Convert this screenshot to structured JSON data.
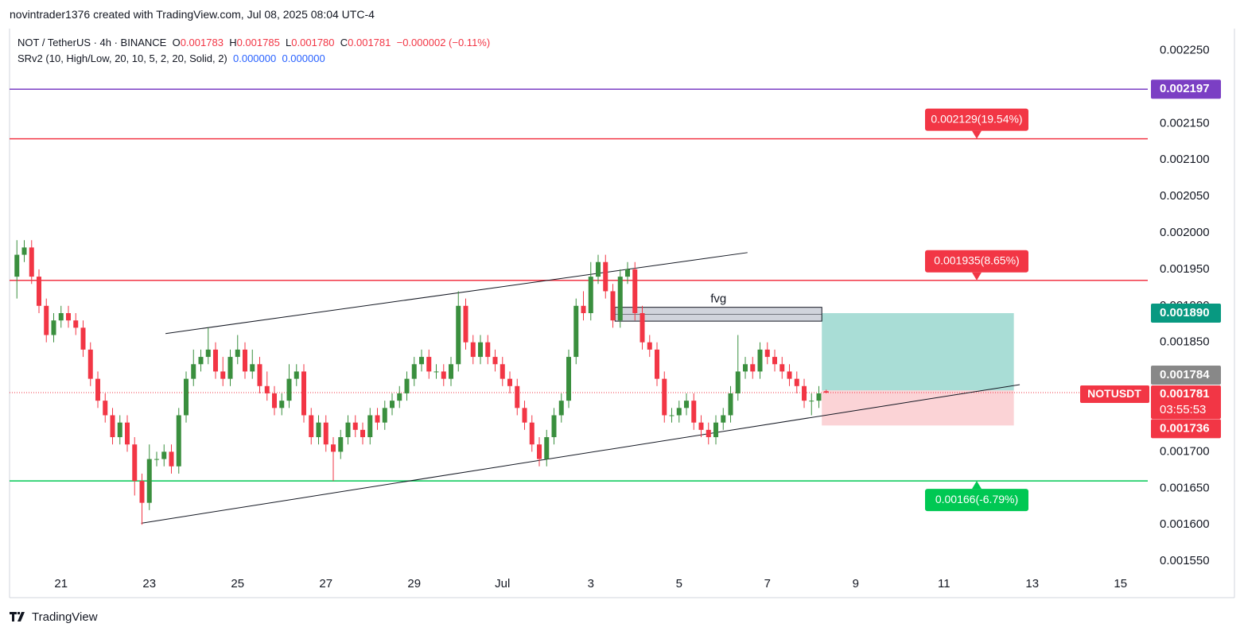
{
  "chart_data": {
    "type": "candlestick",
    "attribution": "novintrader1376 created with TradingView.com, Jul 08, 2025 08:04 UTC-4",
    "legend": {
      "symbol": "NOT / TetherUS · 4h · BINANCE",
      "ohlc": [
        {
          "key": "O",
          "value": "0.001783"
        },
        {
          "key": "H",
          "value": "0.001785"
        },
        {
          "key": "L",
          "value": "0.001780"
        },
        {
          "key": "C",
          "value": "0.001781"
        }
      ],
      "change": "−0.000002 (−0.11%)",
      "indicator": "SRv2 (10, High/Low, 20, 10, 5, 2, 20, Solid, 2)",
      "indicator_values": [
        "0.000000",
        "0.000000"
      ]
    },
    "footer": "TradingView",
    "up_color": "#3a8f3e",
    "down_color": "#f23645",
    "xlim": [
      -1,
      153.7
    ],
    "ylim": [
      0.0015,
      0.00228
    ],
    "xticks": [
      {
        "value": 6,
        "label": "21"
      },
      {
        "value": 18,
        "label": "23"
      },
      {
        "value": 30,
        "label": "25"
      },
      {
        "value": 42,
        "label": "27"
      },
      {
        "value": 54,
        "label": "29"
      },
      {
        "value": 66,
        "label": "Jul"
      },
      {
        "value": 78,
        "label": "3"
      },
      {
        "value": 90,
        "label": "5"
      },
      {
        "value": 102,
        "label": "7"
      },
      {
        "value": 114,
        "label": "9"
      },
      {
        "value": 126,
        "label": "11"
      },
      {
        "value": 138,
        "label": "13"
      },
      {
        "value": 150,
        "label": "15"
      }
    ],
    "yticks": [
      {
        "value": 0.00225,
        "label": "0.002250"
      },
      {
        "value": 0.00215,
        "label": "0.002150"
      },
      {
        "value": 0.0021,
        "label": "0.002100"
      },
      {
        "value": 0.00205,
        "label": "0.002050"
      },
      {
        "value": 0.002,
        "label": "0.002000"
      },
      {
        "value": 0.00195,
        "label": "0.001950"
      },
      {
        "value": 0.0019,
        "label": "0.001900"
      },
      {
        "value": 0.00185,
        "label": "0.001850"
      },
      {
        "value": 0.0017,
        "label": "0.001700"
      },
      {
        "value": 0.00165,
        "label": "0.001650"
      },
      {
        "value": 0.0016,
        "label": "0.001600"
      },
      {
        "value": 0.00155,
        "label": "0.001550"
      }
    ],
    "grid": false,
    "open": [
      0.00194,
      0.00197,
      0.00198,
      0.00194,
      0.0019,
      0.00186,
      0.00188,
      0.00189,
      0.00188,
      0.00187,
      0.00184,
      0.0018,
      0.00177,
      0.00175,
      0.00172,
      0.00174,
      0.00171,
      0.00166,
      0.00163,
      0.00169,
      0.00169,
      0.0017,
      0.00168,
      0.00175,
      0.0018,
      0.00182,
      0.00183,
      0.00184,
      0.00181,
      0.0018,
      0.00183,
      0.00184,
      0.00181,
      0.00182,
      0.00179,
      0.00178,
      0.00176,
      0.00177,
      0.0018,
      0.00181,
      0.00175,
      0.00172,
      0.00174,
      0.00171,
      0.0017,
      0.00172,
      0.00174,
      0.00173,
      0.00172,
      0.00175,
      0.00174,
      0.00176,
      0.00177,
      0.00178,
      0.0018,
      0.00182,
      0.00183,
      0.00181,
      0.00181,
      0.0018,
      0.00182,
      0.0019,
      0.00185,
      0.00183,
      0.00185,
      0.00183,
      0.00182,
      0.0018,
      0.00179,
      0.00176,
      0.00174,
      0.00171,
      0.00169,
      0.00172,
      0.00175,
      0.00177,
      0.00183,
      0.0019,
      0.00189,
      0.00194,
      0.00196,
      0.00192,
      0.00188,
      0.00194,
      0.00195,
      0.00189,
      0.00185,
      0.00184,
      0.0018,
      0.00175,
      0.00175,
      0.00176,
      0.00177,
      0.00174,
      0.00173,
      0.00172,
      0.00174,
      0.00175,
      0.00178,
      0.00181,
      0.00182,
      0.00181,
      0.00184,
      0.00183,
      0.00182,
      0.00181,
      0.0018,
      0.00179,
      0.00177,
      0.00177,
      0.001783
    ],
    "high": [
      0.00199,
      0.00199,
      0.00199,
      0.00195,
      0.00191,
      0.00189,
      0.0019,
      0.0019,
      0.00189,
      0.00188,
      0.00185,
      0.00181,
      0.00178,
      0.00176,
      0.00175,
      0.00175,
      0.00172,
      0.00167,
      0.00171,
      0.0017,
      0.00171,
      0.00171,
      0.00176,
      0.00181,
      0.00184,
      0.00184,
      0.00187,
      0.00185,
      0.00183,
      0.00184,
      0.00186,
      0.00185,
      0.00184,
      0.00183,
      0.00181,
      0.00179,
      0.00178,
      0.00182,
      0.00182,
      0.00182,
      0.00176,
      0.00175,
      0.00175,
      0.00172,
      0.00173,
      0.00175,
      0.00175,
      0.00174,
      0.00176,
      0.00176,
      0.00177,
      0.00178,
      0.00179,
      0.00181,
      0.00183,
      0.00184,
      0.00184,
      0.00182,
      0.00182,
      0.00183,
      0.00192,
      0.00191,
      0.00186,
      0.00186,
      0.00186,
      0.00184,
      0.00183,
      0.00181,
      0.0018,
      0.00177,
      0.00175,
      0.00172,
      0.00173,
      0.00176,
      0.00178,
      0.00184,
      0.00191,
      0.00192,
      0.00196,
      0.00197,
      0.00197,
      0.00193,
      0.00195,
      0.00196,
      0.00196,
      0.0019,
      0.00186,
      0.00185,
      0.00181,
      0.00176,
      0.00177,
      0.00178,
      0.00178,
      0.00175,
      0.00174,
      0.00175,
      0.00176,
      0.00179,
      0.00186,
      0.00183,
      0.00183,
      0.00185,
      0.00185,
      0.00184,
      0.00183,
      0.00182,
      0.00181,
      0.0018,
      0.00178,
      0.00179,
      0.001785
    ],
    "low": [
      0.00191,
      0.00196,
      0.00193,
      0.00189,
      0.00185,
      0.00185,
      0.00187,
      0.00187,
      0.00186,
      0.00183,
      0.00179,
      0.00176,
      0.00174,
      0.00171,
      0.00171,
      0.0017,
      0.00164,
      0.0016,
      0.00162,
      0.00168,
      0.00168,
      0.00167,
      0.00167,
      0.00174,
      0.00179,
      0.00181,
      0.00182,
      0.0018,
      0.00179,
      0.00179,
      0.00182,
      0.0018,
      0.0018,
      0.00178,
      0.00177,
      0.00175,
      0.00175,
      0.00176,
      0.00179,
      0.00174,
      0.00171,
      0.00171,
      0.0017,
      0.00166,
      0.00169,
      0.00171,
      0.00172,
      0.00171,
      0.00171,
      0.00173,
      0.00173,
      0.00175,
      0.00176,
      0.00177,
      0.00179,
      0.00181,
      0.0018,
      0.0018,
      0.00179,
      0.00179,
      0.00181,
      0.00184,
      0.00182,
      0.00182,
      0.00182,
      0.00181,
      0.00179,
      0.00178,
      0.00175,
      0.00173,
      0.0017,
      0.00168,
      0.00168,
      0.00171,
      0.00174,
      0.00176,
      0.00182,
      0.00188,
      0.00188,
      0.00193,
      0.00191,
      0.00187,
      0.00187,
      0.00193,
      0.00188,
      0.00184,
      0.00183,
      0.00179,
      0.00174,
      0.00174,
      0.00174,
      0.00175,
      0.00173,
      0.00172,
      0.00171,
      0.00171,
      0.00173,
      0.00174,
      0.00177,
      0.0018,
      0.0018,
      0.0018,
      0.00182,
      0.00181,
      0.0018,
      0.00179,
      0.00178,
      0.00176,
      0.00175,
      0.00176,
      0.00178
    ],
    "close": [
      0.00197,
      0.00198,
      0.00194,
      0.0019,
      0.00186,
      0.00188,
      0.00189,
      0.00188,
      0.00187,
      0.00184,
      0.0018,
      0.00177,
      0.00175,
      0.00172,
      0.00174,
      0.00171,
      0.00166,
      0.00163,
      0.00169,
      0.00169,
      0.0017,
      0.00168,
      0.00175,
      0.0018,
      0.00182,
      0.00183,
      0.00184,
      0.00181,
      0.0018,
      0.00183,
      0.00184,
      0.00181,
      0.00182,
      0.00179,
      0.00178,
      0.00176,
      0.00177,
      0.0018,
      0.00181,
      0.00175,
      0.00172,
      0.00174,
      0.00171,
      0.0017,
      0.00172,
      0.00174,
      0.00173,
      0.00172,
      0.00175,
      0.00174,
      0.00176,
      0.00177,
      0.00178,
      0.0018,
      0.00182,
      0.00183,
      0.00181,
      0.00181,
      0.0018,
      0.00182,
      0.0019,
      0.00185,
      0.00183,
      0.00185,
      0.00183,
      0.00182,
      0.0018,
      0.00179,
      0.00176,
      0.00174,
      0.00171,
      0.00169,
      0.00172,
      0.00175,
      0.00177,
      0.00183,
      0.0019,
      0.00189,
      0.00194,
      0.00196,
      0.00192,
      0.00188,
      0.00194,
      0.00195,
      0.00189,
      0.00185,
      0.00184,
      0.0018,
      0.00175,
      0.00175,
      0.00176,
      0.00177,
      0.00174,
      0.00173,
      0.00172,
      0.00174,
      0.00175,
      0.00178,
      0.00181,
      0.00182,
      0.00181,
      0.00184,
      0.00183,
      0.00182,
      0.00181,
      0.0018,
      0.00179,
      0.00177,
      0.00177,
      0.00178,
      0.001781
    ],
    "levels": [
      {
        "value": 0.002197,
        "color": "#7b3fc4",
        "axis_label": "0.002197"
      },
      {
        "value": 0.002129,
        "color": "#f23645",
        "label": "0.002129(19.54%)"
      },
      {
        "value": 0.001935,
        "color": "#f23645",
        "label": "0.001935(8.65%)"
      },
      {
        "value": 0.00166,
        "color": "#00c853",
        "label": "0.00166(-6.79%)"
      }
    ],
    "trendlines": [
      {
        "x": [
          20.2,
          99.3
        ],
        "y": [
          0.001862,
          0.001973
        ]
      },
      {
        "x": [
          16.9,
          136.3
        ],
        "y": [
          0.001602,
          0.001792
        ]
      }
    ],
    "fvg": {
      "label": "fvg",
      "x": [
        81.3,
        109.4
      ],
      "y": [
        0.001879,
        0.001898
      ]
    },
    "position": {
      "x": [
        109.4,
        135.5
      ],
      "target": 0.00189,
      "entry": 0.001784,
      "stop": 0.001736,
      "target_label": "0.001890",
      "entry_label": "0.001784",
      "stop_label": "0.001736"
    },
    "last_price": {
      "value": 0.001781,
      "label": "0.001781",
      "symbol": "NOTUSDT",
      "countdown": "03:55:53"
    }
  }
}
